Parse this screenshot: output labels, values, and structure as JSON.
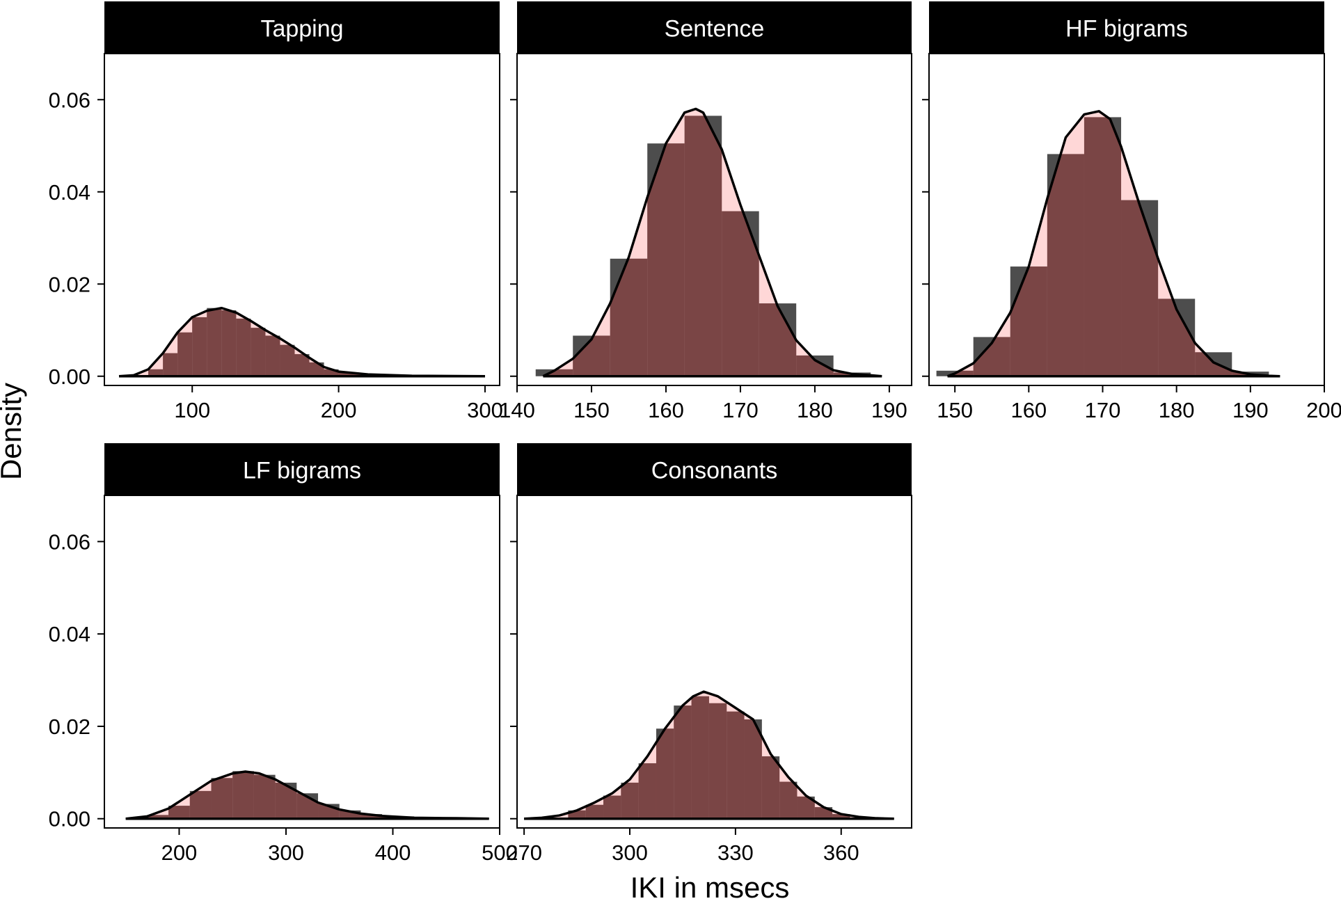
{
  "figure": {
    "xlabel": "IKI in msecs",
    "ylabel": "Density",
    "colors": {
      "hist_fill": "#4d4d4d",
      "density_fill": "#ffb6b6",
      "overlap_fill": "#7a4545",
      "strip_bg": "#000000",
      "strip_text": "#ffffff",
      "line": "#000000"
    }
  },
  "chart_data": [
    {
      "type": "histogram+density",
      "title": "Tapping",
      "xlim": [
        40,
        310
      ],
      "ylim": [
        -0.002,
        0.07
      ],
      "xticks": [
        100,
        200,
        300
      ],
      "yticks": [
        0,
        0.02,
        0.04,
        0.06
      ],
      "ytick_labels": [
        "0.00",
        "0.02",
        "0.04",
        "0.06"
      ],
      "bins": [
        {
          "x0": 50,
          "x1": 60,
          "y": 0.0
        },
        {
          "x0": 60,
          "x1": 70,
          "y": 0.0002
        },
        {
          "x0": 70,
          "x1": 80,
          "y": 0.0015
        },
        {
          "x0": 80,
          "x1": 90,
          "y": 0.005
        },
        {
          "x0": 90,
          "x1": 100,
          "y": 0.0095
        },
        {
          "x0": 100,
          "x1": 110,
          "y": 0.0128
        },
        {
          "x0": 110,
          "x1": 120,
          "y": 0.0148
        },
        {
          "x0": 120,
          "x1": 130,
          "y": 0.0143
        },
        {
          "x0": 130,
          "x1": 140,
          "y": 0.0125
        },
        {
          "x0": 140,
          "x1": 150,
          "y": 0.0105
        },
        {
          "x0": 150,
          "x1": 160,
          "y": 0.0088
        },
        {
          "x0": 160,
          "x1": 170,
          "y": 0.0068
        },
        {
          "x0": 170,
          "x1": 180,
          "y": 0.0048
        },
        {
          "x0": 180,
          "x1": 190,
          "y": 0.003
        },
        {
          "x0": 190,
          "x1": 200,
          "y": 0.0015
        },
        {
          "x0": 200,
          "x1": 210,
          "y": 0.0008
        },
        {
          "x0": 210,
          "x1": 220,
          "y": 0.0005
        },
        {
          "x0": 220,
          "x1": 230,
          "y": 0.0003
        },
        {
          "x0": 230,
          "x1": 250,
          "y": 0.0002
        },
        {
          "x0": 250,
          "x1": 300,
          "y": 0.0001
        }
      ],
      "density": {
        "x": [
          50,
          60,
          70,
          80,
          90,
          100,
          110,
          120,
          130,
          140,
          150,
          160,
          170,
          180,
          190,
          200,
          220,
          250,
          300
        ],
        "y": [
          0.0,
          0.0002,
          0.0015,
          0.005,
          0.0095,
          0.0128,
          0.0142,
          0.0148,
          0.0138,
          0.012,
          0.01,
          0.0082,
          0.0062,
          0.004,
          0.002,
          0.001,
          0.0004,
          0.0001,
          0.0
        ]
      }
    },
    {
      "type": "histogram+density",
      "title": "Sentence",
      "xlim": [
        140,
        193
      ],
      "ylim": [
        -0.002,
        0.07
      ],
      "xticks": [
        140,
        150,
        160,
        170,
        180,
        190
      ],
      "yticks": [
        0,
        0.02,
        0.04,
        0.06
      ],
      "ytick_labels": [
        "0.00",
        "0.02",
        "0.04",
        "0.06"
      ],
      "bins": [
        {
          "x0": 142.5,
          "x1": 147.5,
          "y": 0.0015
        },
        {
          "x0": 147.5,
          "x1": 152.5,
          "y": 0.0088
        },
        {
          "x0": 152.5,
          "x1": 157.5,
          "y": 0.0255
        },
        {
          "x0": 157.5,
          "x1": 162.5,
          "y": 0.0505
        },
        {
          "x0": 162.5,
          "x1": 167.5,
          "y": 0.0565
        },
        {
          "x0": 167.5,
          "x1": 172.5,
          "y": 0.0358
        },
        {
          "x0": 172.5,
          "x1": 177.5,
          "y": 0.0158
        },
        {
          "x0": 177.5,
          "x1": 182.5,
          "y": 0.0045
        },
        {
          "x0": 182.5,
          "x1": 187.5,
          "y": 0.0008
        }
      ],
      "density": {
        "x": [
          143.5,
          145,
          147.5,
          150,
          152.5,
          155,
          157.5,
          160,
          162.5,
          164,
          165,
          167.5,
          170,
          172.5,
          175,
          177.5,
          180,
          182.5,
          185,
          187.5,
          189
        ],
        "y": [
          0.0,
          0.0012,
          0.0038,
          0.008,
          0.0158,
          0.0258,
          0.0388,
          0.0505,
          0.0572,
          0.058,
          0.0572,
          0.0492,
          0.0372,
          0.0262,
          0.0152,
          0.0078,
          0.0035,
          0.0013,
          0.0005,
          0.0002,
          0.0
        ]
      }
    },
    {
      "type": "histogram+density",
      "title": "HF bigrams",
      "xlim": [
        146.5,
        200
      ],
      "ylim": [
        -0.002,
        0.07
      ],
      "xticks": [
        150,
        160,
        170,
        180,
        190,
        200
      ],
      "yticks": [
        0,
        0.02,
        0.04,
        0.06
      ],
      "ytick_labels": [
        "0.00",
        "0.02",
        "0.04",
        "0.06"
      ],
      "bins": [
        {
          "x0": 147.5,
          "x1": 152.5,
          "y": 0.0012
        },
        {
          "x0": 152.5,
          "x1": 157.5,
          "y": 0.0085
        },
        {
          "x0": 157.5,
          "x1": 162.5,
          "y": 0.0238
        },
        {
          "x0": 162.5,
          "x1": 167.5,
          "y": 0.0482
        },
        {
          "x0": 167.5,
          "x1": 172.5,
          "y": 0.0562
        },
        {
          "x0": 172.5,
          "x1": 177.5,
          "y": 0.0382
        },
        {
          "x0": 177.5,
          "x1": 182.5,
          "y": 0.0168
        },
        {
          "x0": 182.5,
          "x1": 187.5,
          "y": 0.0052
        },
        {
          "x0": 187.5,
          "x1": 192.5,
          "y": 0.001
        }
      ],
      "density": {
        "x": [
          149,
          150,
          152.5,
          155,
          157.5,
          160,
          162.5,
          165,
          167.5,
          169.5,
          171,
          172.5,
          175,
          177.5,
          180,
          182.5,
          185,
          187.5,
          190,
          192.5,
          194
        ],
        "y": [
          0.0,
          0.0006,
          0.0028,
          0.0072,
          0.0138,
          0.0238,
          0.0385,
          0.0518,
          0.0568,
          0.0575,
          0.0558,
          0.0498,
          0.0372,
          0.0255,
          0.0145,
          0.0072,
          0.003,
          0.0012,
          0.0004,
          0.0001,
          0.0
        ]
      }
    },
    {
      "type": "histogram+density",
      "title": "LF bigrams",
      "xlim": [
        130,
        500
      ],
      "ylim": [
        -0.002,
        0.07
      ],
      "xticks": [
        200,
        300,
        400,
        500
      ],
      "yticks": [
        0,
        0.02,
        0.04,
        0.06
      ],
      "ytick_labels": [
        "0.00",
        "0.02",
        "0.04",
        "0.06"
      ],
      "bins": [
        {
          "x0": 150,
          "x1": 170,
          "y": 0.0001
        },
        {
          "x0": 170,
          "x1": 190,
          "y": 0.0008
        },
        {
          "x0": 190,
          "x1": 210,
          "y": 0.0028
        },
        {
          "x0": 210,
          "x1": 230,
          "y": 0.006
        },
        {
          "x0": 230,
          "x1": 250,
          "y": 0.0088
        },
        {
          "x0": 250,
          "x1": 270,
          "y": 0.0103
        },
        {
          "x0": 270,
          "x1": 290,
          "y": 0.0095
        },
        {
          "x0": 290,
          "x1": 310,
          "y": 0.0078
        },
        {
          "x0": 310,
          "x1": 330,
          "y": 0.0055
        },
        {
          "x0": 330,
          "x1": 350,
          "y": 0.0032
        },
        {
          "x0": 350,
          "x1": 370,
          "y": 0.0018
        },
        {
          "x0": 370,
          "x1": 390,
          "y": 0.001
        },
        {
          "x0": 390,
          "x1": 420,
          "y": 0.0005
        },
        {
          "x0": 420,
          "x1": 460,
          "y": 0.0002
        },
        {
          "x0": 460,
          "x1": 490,
          "y": 0.0001
        }
      ],
      "density": {
        "x": [
          150,
          170,
          190,
          210,
          230,
          250,
          262,
          275,
          290,
          310,
          330,
          350,
          370,
          390,
          420,
          460,
          490
        ],
        "y": [
          0.0,
          0.0005,
          0.0022,
          0.0052,
          0.0082,
          0.0098,
          0.0102,
          0.0098,
          0.0085,
          0.006,
          0.0035,
          0.002,
          0.0011,
          0.0006,
          0.0002,
          0.0001,
          0.0
        ]
      }
    },
    {
      "type": "histogram+density",
      "title": "Consonants",
      "xlim": [
        268,
        380
      ],
      "ylim": [
        -0.002,
        0.07
      ],
      "xticks": [
        270,
        300,
        330,
        360
      ],
      "yticks": [
        0,
        0.02,
        0.04,
        0.06
      ],
      "ytick_labels": [
        "0.00",
        "0.02",
        "0.04",
        "0.06"
      ],
      "bins": [
        {
          "x0": 282.5,
          "x1": 287.5,
          "y": 0.0018
        },
        {
          "x0": 287.5,
          "x1": 292.5,
          "y": 0.003
        },
        {
          "x0": 292.5,
          "x1": 297.5,
          "y": 0.005
        },
        {
          "x0": 297.5,
          "x1": 302.5,
          "y": 0.0078
        },
        {
          "x0": 302.5,
          "x1": 307.5,
          "y": 0.012
        },
        {
          "x0": 307.5,
          "x1": 312.5,
          "y": 0.0195
        },
        {
          "x0": 312.5,
          "x1": 317.5,
          "y": 0.0245
        },
        {
          "x0": 317.5,
          "x1": 322.5,
          "y": 0.0265
        },
        {
          "x0": 322.5,
          "x1": 327.5,
          "y": 0.025
        },
        {
          "x0": 327.5,
          "x1": 332.5,
          "y": 0.0232
        },
        {
          "x0": 332.5,
          "x1": 337.5,
          "y": 0.0215
        },
        {
          "x0": 337.5,
          "x1": 342.5,
          "y": 0.0135
        },
        {
          "x0": 342.5,
          "x1": 347.5,
          "y": 0.008
        },
        {
          "x0": 347.5,
          "x1": 352.5,
          "y": 0.0048
        },
        {
          "x0": 352.5,
          "x1": 357.5,
          "y": 0.0025
        },
        {
          "x0": 357.5,
          "x1": 362.5,
          "y": 0.001
        }
      ],
      "density": {
        "x": [
          270,
          275,
          280,
          285,
          290,
          295,
          300,
          305,
          310,
          315,
          318,
          321,
          325,
          330,
          335,
          340,
          345,
          350,
          355,
          360,
          365,
          370,
          375
        ],
        "y": [
          0.0,
          0.0002,
          0.0007,
          0.0018,
          0.0035,
          0.0055,
          0.0085,
          0.0135,
          0.0195,
          0.0245,
          0.0265,
          0.0275,
          0.0265,
          0.024,
          0.0215,
          0.014,
          0.009,
          0.005,
          0.0025,
          0.001,
          0.0004,
          0.0001,
          0.0
        ]
      }
    }
  ]
}
